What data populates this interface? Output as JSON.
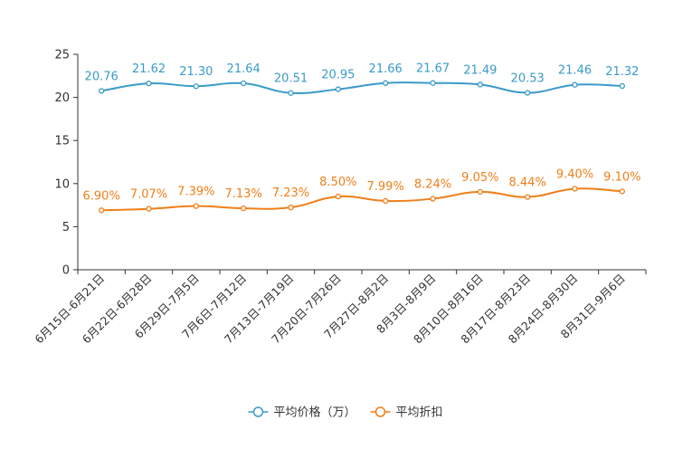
{
  "chart_data": {
    "type": "line",
    "title": "",
    "xlabel": "",
    "ylabel": "",
    "ylim": [
      0,
      25
    ],
    "yticks": [
      0,
      5,
      10,
      15,
      20,
      25
    ],
    "categories": [
      "6月15日-6月21日",
      "6月22日-6月28日",
      "6月29日-7月5日",
      "7月6日-7月12日",
      "7月13日-7月19日",
      "7月20日-7月26日",
      "7月27日-8月2日",
      "8月3日-8月9日",
      "8月10日-8月16日",
      "8月17日-8月23日",
      "8月24日-8月30日",
      "8月31日-9月6日"
    ],
    "series": [
      {
        "name": "平均价格（万）",
        "color": "#3a9bc9",
        "values": [
          20.76,
          21.62,
          21.3,
          21.64,
          20.51,
          20.95,
          21.66,
          21.67,
          21.49,
          20.53,
          21.46,
          21.32
        ],
        "labels": [
          "20.76",
          "21.62",
          "21.30",
          "21.64",
          "20.51",
          "20.95",
          "21.66",
          "21.67",
          "21.49",
          "20.53",
          "21.46",
          "21.32"
        ]
      },
      {
        "name": "平均折扣",
        "color": "#f07f1a",
        "values": [
          6.9,
          7.07,
          7.39,
          7.13,
          7.23,
          8.5,
          7.99,
          8.24,
          9.05,
          8.44,
          9.4,
          9.1
        ],
        "labels": [
          "6.90%",
          "7.07%",
          "7.39%",
          "7.13%",
          "7.23%",
          "8.50%",
          "7.99%",
          "8.24%",
          "9.05%",
          "8.44%",
          "9.40%",
          "9.10%"
        ]
      }
    ],
    "grid": false,
    "legend": "bottom-center"
  }
}
